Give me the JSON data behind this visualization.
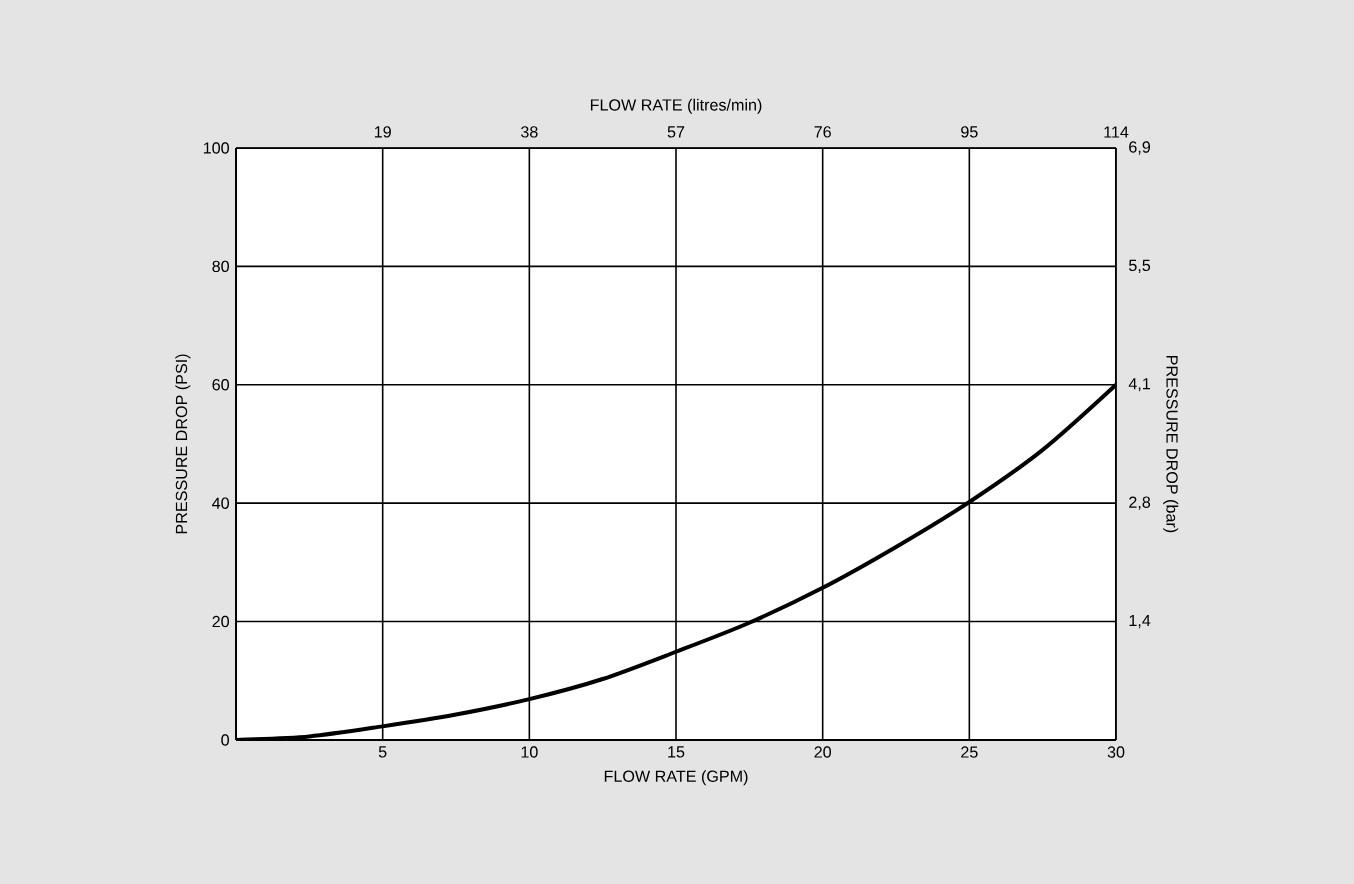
{
  "chart_data": {
    "type": "line",
    "xlabel": "FLOW RATE (GPM)",
    "ylabel": "PRESSURE DROP (PSI)",
    "x2label": "FLOW RATE (litres/min)",
    "y2label": "PRESSURE DROP (bar)",
    "x": [
      0,
      2.5,
      5,
      7.5,
      10,
      12.5,
      15,
      17.5,
      20,
      22.5,
      25,
      27.5,
      30
    ],
    "series": [
      {
        "color": "#000000",
        "values": [
          0,
          0.6,
          2.3,
          4.3,
          6.9,
          10.3,
          14.9,
          19.8,
          25.7,
          32.6,
          40.2,
          49,
          60
        ]
      }
    ],
    "xlim": [
      0,
      30
    ],
    "xticks": [
      5,
      10,
      15,
      20,
      25,
      30
    ],
    "ylim": [
      0,
      100
    ],
    "yticks": [
      0,
      20,
      40,
      60,
      80,
      100
    ],
    "x2lim": [
      0,
      114
    ],
    "x2ticks": [
      19,
      38,
      57,
      76,
      95,
      114
    ],
    "y2lim": [
      0,
      6.9
    ],
    "y2ticks": [
      {
        "value": 1.38,
        "label": "1,4"
      },
      {
        "value": 2.76,
        "label": "2,8"
      },
      {
        "value": 4.14,
        "label": "4,1"
      },
      {
        "value": 5.52,
        "label": "5,5"
      },
      {
        "value": 6.9,
        "label": "6,9"
      }
    ],
    "grid": true,
    "marker": "none",
    "line_style": "solid"
  }
}
